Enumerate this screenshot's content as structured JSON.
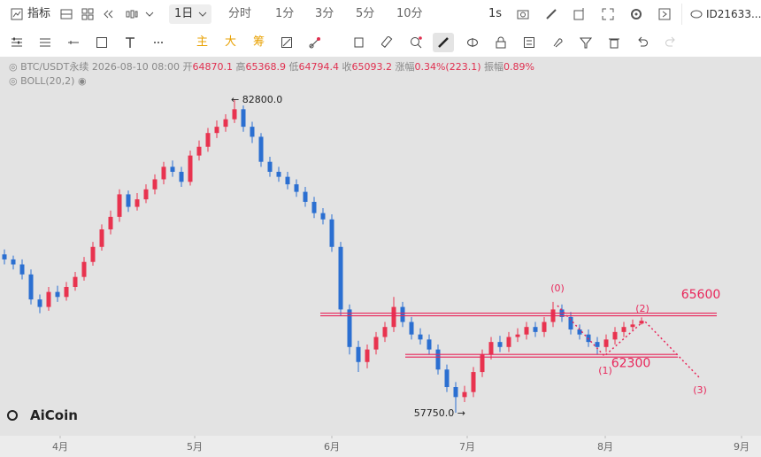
{
  "toolbar": {
    "indicators": "指标",
    "interval": "1日",
    "tabs": [
      "分时",
      "1分",
      "3分",
      "5分",
      "10分"
    ],
    "seconds": "1s",
    "account": "ID21633..."
  },
  "drawing_tools": {
    "main": "主",
    "big": "大",
    "chips": "筹"
  },
  "legend": {
    "symbol": "BTC/USDT永续",
    "datetime": "2026-08-10 08:00",
    "open_label": "开",
    "high_label": "高",
    "low_label": "低",
    "close_label": "收",
    "change_label": "涨幅",
    "change": "0.34%(223.1)",
    "amplitude_label": "振幅",
    "amplitude": "0.89%",
    "indicator": "BOLL(20,2)"
  },
  "logo": "AiCoin",
  "chart_data": {
    "type": "candlestick",
    "up_color": "#e8334f",
    "down_color": "#2b6fd1",
    "open": [
      70400,
      70000,
      69600,
      68800,
      66800,
      66200,
      67400,
      67000,
      67800,
      68600,
      69800,
      71000,
      72400,
      73400,
      75200,
      74200,
      74800,
      75600,
      76400,
      77400,
      77000,
      76200,
      78300,
      79000,
      80100,
      80600,
      81200,
      82000,
      80600,
      79800,
      77800,
      77000,
      76600,
      76000,
      75400,
      74600,
      73700,
      73200,
      71000,
      66000,
      63000,
      61800,
      62800,
      63800,
      64600,
      66200,
      65000,
      64000,
      63600,
      62800,
      61200,
      59800,
      59000,
      59400,
      61000,
      62400,
      63400,
      63000,
      63800,
      64000,
      64600,
      64200,
      65000,
      66000,
      65400,
      64400,
      64000,
      63400,
      63000,
      63600,
      64200,
      64600,
      64870.1
    ],
    "high": [
      70800,
      70300,
      70000,
      69200,
      67200,
      67800,
      67900,
      68200,
      69000,
      70200,
      71400,
      72800,
      73900,
      75600,
      75500,
      75300,
      76000,
      76800,
      77800,
      77900,
      77400,
      78700,
      79500,
      80500,
      81100,
      81600,
      82800,
      82300,
      81000,
      80100,
      78200,
      77400,
      77000,
      76400,
      75800,
      75000,
      74100,
      73600,
      71400,
      66400,
      63500,
      63200,
      64200,
      65000,
      67000,
      66600,
      65400,
      64500,
      64000,
      63200,
      61600,
      60200,
      59900,
      61400,
      62800,
      63800,
      63900,
      64200,
      64500,
      65000,
      65000,
      65400,
      66600,
      66400,
      65800,
      64800,
      64400,
      63800,
      64000,
      64600,
      65000,
      65200,
      65368.9
    ],
    "low": [
      69600,
      69200,
      68400,
      66400,
      65700,
      65900,
      66600,
      66700,
      67500,
      68300,
      69500,
      70700,
      72000,
      73000,
      73800,
      73900,
      74500,
      75200,
      76000,
      76600,
      75800,
      75900,
      77900,
      78600,
      79700,
      80200,
      80900,
      80200,
      79300,
      77400,
      76600,
      76200,
      75600,
      75000,
      74200,
      73300,
      72800,
      70600,
      65500,
      62400,
      61000,
      61300,
      62400,
      63400,
      64200,
      64600,
      63600,
      63200,
      62400,
      60800,
      59400,
      57750,
      58600,
      59000,
      60600,
      62000,
      62600,
      62600,
      63400,
      63600,
      63800,
      63800,
      64600,
      65000,
      64000,
      63600,
      63000,
      62400,
      62600,
      63200,
      63800,
      64300,
      64794.4
    ],
    "close": [
      70000,
      69600,
      68800,
      66800,
      66200,
      67400,
      67000,
      67800,
      68600,
      69800,
      71000,
      72400,
      73400,
      75200,
      74200,
      74800,
      75600,
      76400,
      77400,
      77000,
      76200,
      78300,
      79000,
      80100,
      80600,
      81200,
      82000,
      80600,
      79800,
      77800,
      77000,
      76600,
      76000,
      75400,
      74600,
      73700,
      73200,
      71000,
      66000,
      63000,
      61800,
      62800,
      63800,
      64600,
      66200,
      65000,
      64000,
      63600,
      62800,
      61200,
      59800,
      59000,
      59400,
      61000,
      62400,
      63400,
      63000,
      63800,
      64000,
      64600,
      64200,
      65000,
      66000,
      65400,
      64400,
      64000,
      63400,
      63000,
      63600,
      64200,
      64600,
      64800,
      65093.2
    ],
    "xlim": [
      -0.5,
      85.5
    ],
    "ylim": [
      56050,
      84360
    ],
    "xticks": [
      {
        "value": 6.3,
        "label": "4月"
      },
      {
        "value": 21.5,
        "label": "5月"
      },
      {
        "value": 37,
        "label": "6月"
      },
      {
        "value": 52.3,
        "label": "7月"
      },
      {
        "value": 67.9,
        "label": "8月"
      },
      {
        "value": 83.3,
        "label": "9月"
      }
    ],
    "max_label": {
      "value": 82800,
      "label": "← 82800.0"
    },
    "min_label": {
      "value": 57750,
      "label": "57750.0 →"
    },
    "levels": [
      {
        "value": 65600,
        "color": "#e8265a"
      },
      {
        "value": 62300,
        "color": "#e8265a"
      }
    ],
    "wave_labels": [
      "(0)",
      "(1)",
      "(2)",
      "(3)"
    ]
  }
}
